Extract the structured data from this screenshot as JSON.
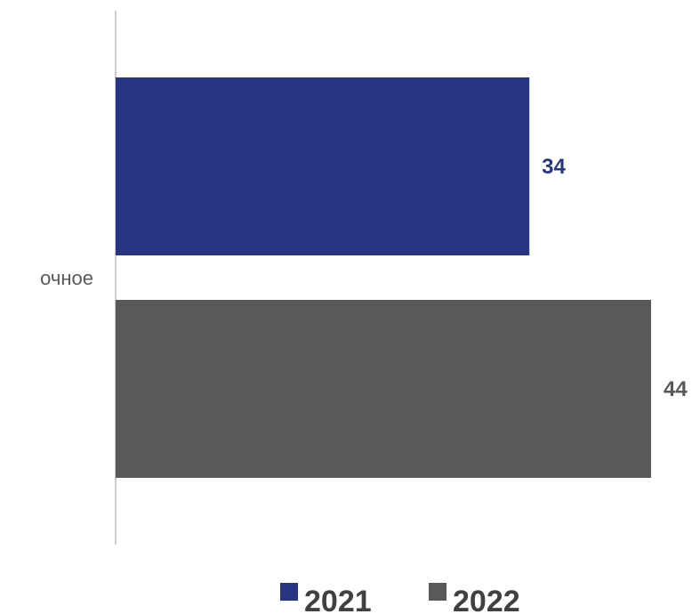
{
  "chart_data": {
    "type": "bar",
    "orientation": "horizontal",
    "categories": [
      "очное"
    ],
    "series": [
      {
        "name": "2021",
        "values": [
          34
        ],
        "color": "#283583"
      },
      {
        "name": "2022",
        "values": [
          44
        ],
        "color": "#595959"
      }
    ],
    "title": "",
    "xlabel": "",
    "ylabel": "",
    "xlim": [
      0,
      44
    ],
    "grid": false,
    "legend": "bottom",
    "data_labels": true
  }
}
